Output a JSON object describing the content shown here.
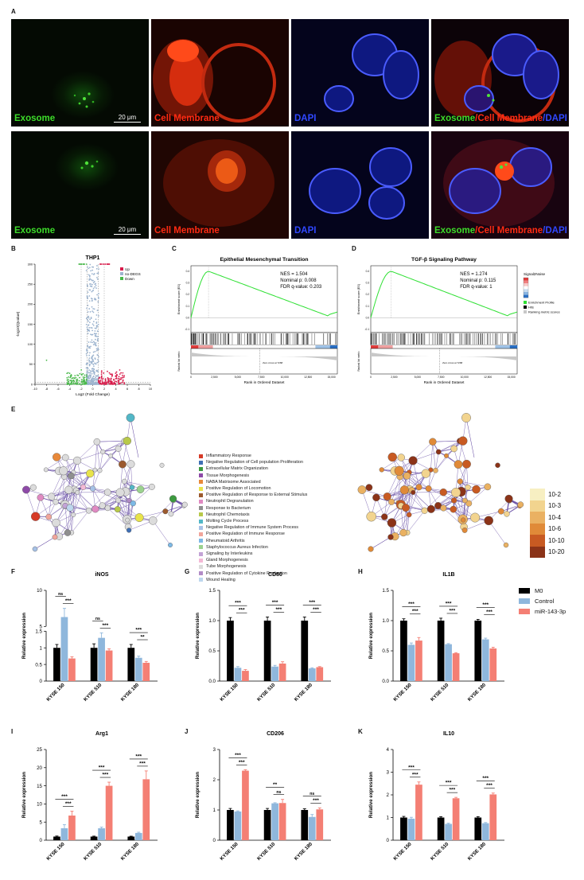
{
  "panels": {
    "A": {
      "letter": "A"
    },
    "B": {
      "letter": "B"
    },
    "C": {
      "letter": "C"
    },
    "D": {
      "letter": "D"
    },
    "E": {
      "letter": "E"
    },
    "F": {
      "letter": "F"
    },
    "G": {
      "letter": "G"
    },
    "H": {
      "letter": "H"
    },
    "I": {
      "letter": "I"
    },
    "J": {
      "letter": "J"
    },
    "K": {
      "letter": "K"
    }
  },
  "microscopy": {
    "scale_bar": "20 μm",
    "labels": {
      "exosome": "Exosome",
      "membrane": "Cell Membrane",
      "dapi": "DAPI",
      "merge_a": "Exosome",
      "merge_b": "/Cell Membrane",
      "merge_c": "/DAPI"
    },
    "colors": {
      "green": "#3ddc2a",
      "red": "#ff2a12",
      "blue": "#3048ff"
    }
  },
  "volcano": {
    "title": "THP1",
    "xlabel": "Log2 (Fold Change)",
    "ylabel": "-log10(Qvalue)",
    "legend": [
      "Up",
      "no-DEGS",
      "Down"
    ],
    "colors": {
      "up": "#d81b4a",
      "none": "#9db4cf",
      "down": "#49b84a"
    },
    "xticks": [
      "-10",
      "-8",
      "-6",
      "-4",
      "-2",
      "0",
      "2",
      "4",
      "6",
      "8",
      "10"
    ],
    "yticks": [
      "0",
      "50",
      "100",
      "150",
      "200",
      "250",
      "300"
    ]
  },
  "gsea": [
    {
      "title": "Epithelial Mesenchymal Transition",
      "stats": [
        "NES = 1.504",
        "Nominal p: 0.008",
        "FDR q-value: 0.203"
      ],
      "ylabel_top": "Enrichment score (ES)",
      "ylabel_bottom": "Ranked list metric",
      "zero_cross": "Zero cross at 7268",
      "xlabel": "Rank in Ordered Dataset",
      "xticks": [
        "0",
        "2,500",
        "5,000",
        "7,500",
        "10,000",
        "12,500",
        "15,000"
      ]
    },
    {
      "title": "TGF-β Signaling Pathway",
      "stats": [
        "NES = 1.274",
        "Nominal p: 0.115",
        "FDR q-value: 1"
      ],
      "ylabel_top": "Enrichment score (ES)",
      "ylabel_bottom": "Ranked list metric",
      "zero_cross": "Zero cross at 7268",
      "xlabel": "Rank in Ordered Dataset",
      "xticks": [
        "0",
        "2,500",
        "5,000",
        "7,500",
        "10,000",
        "12,500",
        "15,000"
      ]
    }
  ],
  "gsea_legend": {
    "title": "Signal2Noise",
    "items": [
      "Enrichment Profile",
      "Hits",
      "Ranking metric scores"
    ]
  },
  "network": {
    "terms": [
      {
        "label": "Inflammatory Response",
        "color": "#d63a27"
      },
      {
        "label": "Negative Regulation of Cell population Proliferation",
        "color": "#3f6fb5"
      },
      {
        "label": "Extracellular Matrix Organization",
        "color": "#3c9a3f"
      },
      {
        "label": "Tissue Morphogenesis",
        "color": "#8e4aa8"
      },
      {
        "label": "NABA Matrisome Associated",
        "color": "#e8893a"
      },
      {
        "label": "Positive Regulation of Locomotion",
        "color": "#e8e34a"
      },
      {
        "label": "Positive Regulation of Response to External Stimulus",
        "color": "#9b5a2e"
      },
      {
        "label": "Neutrophil Degranulation",
        "color": "#e08ac2"
      },
      {
        "label": "Response to Bacterium",
        "color": "#8f8f8f"
      },
      {
        "label": "Neutrophil Chemotaxis",
        "color": "#b8c94a"
      },
      {
        "label": "Molting Cycle Process",
        "color": "#52b7c7"
      },
      {
        "label": "Negative Regulation of Immune System Process",
        "color": "#a6c1e6"
      },
      {
        "label": "Positive Regulation of Immune Response",
        "color": "#f1a59b"
      },
      {
        "label": "Rheumatoid Arthritis",
        "color": "#7db9e6"
      },
      {
        "label": "Staphylococcus Aureus Infection",
        "color": "#9bd28f"
      },
      {
        "label": "Signaling by Interleukins",
        "color": "#c3a3d6"
      },
      {
        "label": "Gland Morphogenesis",
        "color": "#f4b9d6"
      },
      {
        "label": "Tube Morphogenesis",
        "color": "#dcdcdc"
      },
      {
        "label": "Positive Regulation of Cytokine Production",
        "color": "#b28bc7"
      },
      {
        "label": "Wound Healing",
        "color": "#bdd7ee"
      }
    ],
    "pvalue_legend": [
      {
        "label": "10-2",
        "color": "#f7efc2"
      },
      {
        "label": "10-3",
        "color": "#f2d48f"
      },
      {
        "label": "10-4",
        "color": "#eab162"
      },
      {
        "label": "10-6",
        "color": "#e08a38"
      },
      {
        "label": "10-10",
        "color": "#c85a22"
      },
      {
        "label": "10-20",
        "color": "#8b3318"
      }
    ],
    "edge_color": "#5b3f9e"
  },
  "bar_legend": [
    {
      "label": "M0",
      "color": "#000000"
    },
    {
      "label": "Control",
      "color": "#8fb7dc"
    },
    {
      "label": "miR-143-3p",
      "color": "#f47f74"
    }
  ],
  "chart_data": [
    {
      "type": "bar",
      "panel": "F",
      "title": "iNOS",
      "ylabel": "Relative expression",
      "categories": [
        "KYSE 150",
        "KYSE 510",
        "KYSE 180"
      ],
      "series": [
        {
          "name": "M0",
          "values": [
            1.0,
            1.0,
            1.0
          ],
          "errors": [
            0.1,
            0.12,
            0.1
          ]
        },
        {
          "name": "Control",
          "values": [
            6.3,
            1.3,
            0.7
          ],
          "errors": [
            1.2,
            0.15,
            0.05
          ]
        },
        {
          "name": "miR-143-3p",
          "values": [
            0.68,
            0.92,
            0.55
          ],
          "errors": [
            0.05,
            0.05,
            0.04
          ]
        }
      ],
      "ylim": [
        0,
        10
      ],
      "yticks": [
        0,
        0.5,
        1,
        1.5,
        5,
        10
      ],
      "ytick_labels": [
        "0",
        "0.5",
        "1",
        "1.5",
        "5",
        "10"
      ],
      "y_breaks": [
        [
          1.5,
          5
        ]
      ],
      "sig": [
        [
          {
            "text": "ns",
            "pair": [
              0,
              1
            ]
          },
          {
            "text": "***",
            "pair": [
              1,
              2
            ]
          }
        ],
        [
          {
            "text": "ns",
            "pair": [
              0,
              1
            ]
          },
          {
            "text": "***",
            "pair": [
              1,
              2
            ]
          }
        ],
        [
          {
            "text": "***",
            "pair": [
              0,
              2
            ]
          },
          {
            "text": "**",
            "pair": [
              1,
              2
            ]
          }
        ]
      ]
    },
    {
      "type": "bar",
      "panel": "G",
      "title": "CD80",
      "ylabel": "Relative expression",
      "categories": [
        "KYSE 150",
        "KYSE 510",
        "KYSE 180"
      ],
      "series": [
        {
          "name": "M0",
          "values": [
            1.0,
            1.0,
            1.0
          ],
          "errors": [
            0.05,
            0.06,
            0.06
          ]
        },
        {
          "name": "Control",
          "values": [
            0.22,
            0.24,
            0.21
          ],
          "errors": [
            0.02,
            0.02,
            0.01
          ]
        },
        {
          "name": "miR-143-3p",
          "values": [
            0.17,
            0.29,
            0.23
          ],
          "errors": [
            0.02,
            0.03,
            0.01
          ]
        }
      ],
      "ylim": [
        0,
        1.5
      ],
      "yticks": [
        0,
        0.5,
        1.0,
        1.5
      ],
      "ytick_labels": [
        "0.0",
        "0.5",
        "1.0",
        "1.5"
      ],
      "sig": [
        [
          {
            "text": "***",
            "pair": [
              0,
              2
            ]
          },
          {
            "text": "***",
            "pair": [
              1,
              2
            ]
          }
        ],
        [
          {
            "text": "***",
            "pair": [
              0,
              2
            ]
          },
          {
            "text": "***",
            "pair": [
              1,
              2
            ]
          }
        ],
        [
          {
            "text": "***",
            "pair": [
              0,
              2
            ]
          },
          {
            "text": "***",
            "pair": [
              1,
              2
            ]
          }
        ]
      ]
    },
    {
      "type": "bar",
      "panel": "H",
      "title": "IL1B",
      "ylabel": "Relative expression",
      "categories": [
        "KYSE 150",
        "KYSE 510",
        "KYSE 180"
      ],
      "series": [
        {
          "name": "M0",
          "values": [
            1.0,
            1.0,
            1.0
          ],
          "errors": [
            0.03,
            0.04,
            0.02
          ]
        },
        {
          "name": "Control",
          "values": [
            0.6,
            0.61,
            0.69
          ],
          "errors": [
            0.03,
            0.01,
            0.02
          ]
        },
        {
          "name": "miR-143-3p",
          "values": [
            0.67,
            0.46,
            0.54
          ],
          "errors": [
            0.05,
            0.01,
            0.02
          ]
        }
      ],
      "ylim": [
        0,
        1.5
      ],
      "yticks": [
        0,
        0.5,
        1.0,
        1.5
      ],
      "ytick_labels": [
        "0.0",
        "0.5",
        "1.0",
        "1.5"
      ],
      "sig": [
        [
          {
            "text": "***",
            "pair": [
              0,
              2
            ]
          },
          {
            "text": "***",
            "pair": [
              1,
              2
            ]
          }
        ],
        [
          {
            "text": "***",
            "pair": [
              0,
              2
            ]
          },
          {
            "text": "***",
            "pair": [
              1,
              2
            ]
          }
        ],
        [
          {
            "text": "***",
            "pair": [
              0,
              2
            ]
          },
          {
            "text": "***",
            "pair": [
              1,
              2
            ]
          }
        ]
      ]
    },
    {
      "type": "bar",
      "panel": "I",
      "title": "Arg1",
      "ylabel": "Relative expression",
      "categories": [
        "KYSE 150",
        "KYSE 510",
        "KYSE 180"
      ],
      "series": [
        {
          "name": "M0",
          "values": [
            1.0,
            1.0,
            1.0
          ],
          "errors": [
            0.15,
            0.12,
            0.1
          ]
        },
        {
          "name": "Control",
          "values": [
            3.3,
            3.3,
            2.0
          ],
          "errors": [
            1.0,
            0.3,
            0.2
          ]
        },
        {
          "name": "miR-143-3p",
          "values": [
            6.8,
            15.0,
            16.8
          ],
          "errors": [
            1.2,
            1.0,
            2.3
          ]
        }
      ],
      "ylim": [
        0,
        25
      ],
      "yticks": [
        0,
        5,
        10,
        15,
        20,
        25
      ],
      "ytick_labels": [
        "0",
        "5",
        "10",
        "15",
        "20",
        "25"
      ],
      "sig": [
        [
          {
            "text": "***",
            "pair": [
              0,
              2
            ]
          },
          {
            "text": "***",
            "pair": [
              1,
              2
            ]
          }
        ],
        [
          {
            "text": "***",
            "pair": [
              0,
              2
            ]
          },
          {
            "text": "***",
            "pair": [
              1,
              2
            ]
          }
        ],
        [
          {
            "text": "***",
            "pair": [
              0,
              2
            ]
          },
          {
            "text": "***",
            "pair": [
              1,
              2
            ]
          }
        ]
      ]
    },
    {
      "type": "bar",
      "panel": "J",
      "title": "CD206",
      "ylabel": "Relative expression",
      "categories": [
        "KYSE 150",
        "KYSE 510",
        "KYSE 180"
      ],
      "series": [
        {
          "name": "M0",
          "values": [
            1.0,
            1.0,
            1.0
          ],
          "errors": [
            0.05,
            0.05,
            0.04
          ]
        },
        {
          "name": "Control",
          "values": [
            0.95,
            1.22,
            0.77
          ],
          "errors": [
            0.02,
            0.02,
            0.08
          ]
        },
        {
          "name": "miR-143-3p",
          "values": [
            2.3,
            1.23,
            1.02
          ],
          "errors": [
            0.03,
            0.12,
            0.05
          ]
        }
      ],
      "ylim": [
        0,
        3
      ],
      "yticks": [
        0,
        1,
        2,
        3
      ],
      "ytick_labels": [
        "0",
        "1",
        "2",
        "3"
      ],
      "sig": [
        [
          {
            "text": "***",
            "pair": [
              0,
              2
            ]
          },
          {
            "text": "***",
            "pair": [
              1,
              2
            ]
          }
        ],
        [
          {
            "text": "**",
            "pair": [
              0,
              2
            ]
          },
          {
            "text": "ns",
            "pair": [
              1,
              2
            ]
          }
        ],
        [
          {
            "text": "ns",
            "pair": [
              0,
              2
            ]
          },
          {
            "text": "***",
            "pair": [
              1,
              2
            ]
          }
        ]
      ]
    },
    {
      "type": "bar",
      "panel": "K",
      "title": "IL10",
      "ylabel": "Relative expression",
      "categories": [
        "KYSE 150",
        "KYSE 510",
        "KYSE 180"
      ],
      "series": [
        {
          "name": "M0",
          "values": [
            1.0,
            1.0,
            1.0
          ],
          "errors": [
            0.05,
            0.04,
            0.04
          ]
        },
        {
          "name": "Control",
          "values": [
            0.95,
            0.72,
            0.75
          ],
          "errors": [
            0.06,
            0.03,
            0.03
          ]
        },
        {
          "name": "miR-143-3p",
          "values": [
            2.45,
            1.85,
            2.02
          ],
          "errors": [
            0.12,
            0.04,
            0.06
          ]
        }
      ],
      "ylim": [
        0,
        4
      ],
      "yticks": [
        0,
        1,
        2,
        3,
        4
      ],
      "ytick_labels": [
        "0",
        "1",
        "2",
        "3",
        "4"
      ],
      "sig": [
        [
          {
            "text": "***",
            "pair": [
              0,
              2
            ]
          },
          {
            "text": "***",
            "pair": [
              1,
              2
            ]
          }
        ],
        [
          {
            "text": "***",
            "pair": [
              0,
              2
            ]
          },
          {
            "text": "***",
            "pair": [
              1,
              2
            ]
          }
        ],
        [
          {
            "text": "***",
            "pair": [
              0,
              2
            ]
          },
          {
            "text": "***",
            "pair": [
              1,
              2
            ]
          }
        ]
      ]
    }
  ]
}
